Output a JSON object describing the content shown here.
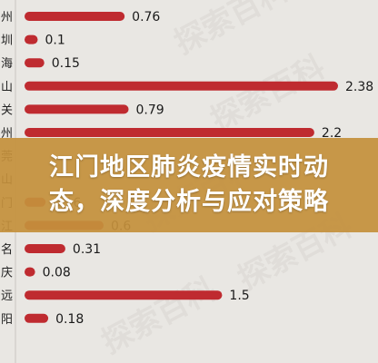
{
  "chart_data": {
    "type": "bar",
    "orientation": "horizontal",
    "categories": [
      "州",
      "圳",
      "海",
      "山",
      "关",
      "州",
      "莞",
      "山",
      "门",
      "江",
      "名",
      "庆",
      "远",
      "阳"
    ],
    "values": [
      0.76,
      0.1,
      0.15,
      2.38,
      0.79,
      2.2,
      null,
      null,
      0.16,
      0.6,
      0.31,
      0.08,
      1.5,
      0.18
    ],
    "value_labels": [
      "0.76",
      "0.1",
      "0.15",
      "2.38",
      "0.79",
      "2.2",
      "",
      "",
      "0.16",
      "0.6",
      "0.31",
      "0.08",
      "1.5",
      "0.18"
    ],
    "xlim": [
      0,
      2.38
    ],
    "bar_color": "#bf2b30",
    "grid": false
  },
  "overlay": {
    "line1": "江门地区肺炎疫情实时动",
    "line2": "态，深度分析与应对策略",
    "color": "#c4903c"
  },
  "watermark": "探索百科"
}
